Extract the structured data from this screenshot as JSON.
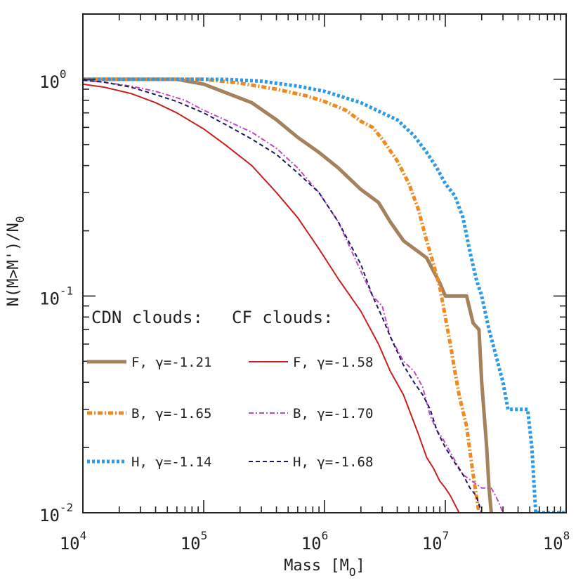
{
  "chart_data": {
    "type": "line",
    "xscale": "log",
    "yscale": "log",
    "xlim": [
      10000,
      100000000
    ],
    "ylim": [
      0.01,
      2.0
    ],
    "grid": false,
    "xlabel": "Mass [M",
    "xlabel_sub": "O",
    "xlabel_close": "]",
    "ylabel": "N(M>M')/N",
    "ylabel_sub": "0",
    "x_ticks": [
      {
        "base": "10",
        "exp": "4"
      },
      {
        "base": "10",
        "exp": "5"
      },
      {
        "base": "10",
        "exp": "6"
      },
      {
        "base": "10",
        "exp": "7"
      },
      {
        "base": "10",
        "exp": "8"
      }
    ],
    "y_ticks": [
      {
        "base": "10",
        "exp": "-2"
      },
      {
        "base": "10",
        "exp": "-1"
      },
      {
        "base": "10",
        "exp": "0"
      }
    ],
    "legend": {
      "placement": "lower-left",
      "group_titles": [
        "CDN clouds:",
        "CF clouds:"
      ]
    },
    "series": [
      {
        "name": "F, γ=-1.21",
        "group": "CDN clouds",
        "color": "#a3825d",
        "style": "solid",
        "width": "thick",
        "points": [
          [
            10000,
            1.0
          ],
          [
            30000,
            1.0
          ],
          [
            60000,
            1.0
          ],
          [
            100000,
            0.95
          ],
          [
            150000,
            0.87
          ],
          [
            250000,
            0.78
          ],
          [
            400000,
            0.65
          ],
          [
            600000,
            0.54
          ],
          [
            900000,
            0.46
          ],
          [
            1300000,
            0.39
          ],
          [
            2000000,
            0.31
          ],
          [
            2800000,
            0.27
          ],
          [
            3500000,
            0.22
          ],
          [
            4500000,
            0.18
          ],
          [
            6000000,
            0.16
          ],
          [
            7000000,
            0.15
          ],
          [
            8000000,
            0.13
          ],
          [
            9000000,
            0.115
          ],
          [
            10000000,
            0.1
          ],
          [
            15000000,
            0.1
          ],
          [
            17000000,
            0.075
          ],
          [
            19000000,
            0.07
          ],
          [
            20000000,
            0.04
          ],
          [
            22000000,
            0.02
          ],
          [
            23000000,
            0.013
          ],
          [
            24000000,
            0.01
          ]
        ]
      },
      {
        "name": "B, γ=-1.65",
        "group": "CDN clouds",
        "color": "#f08a20",
        "style": "dashdot",
        "width": "thick",
        "points": [
          [
            10000,
            1.0
          ],
          [
            100000,
            1.0
          ],
          [
            200000,
            0.96
          ],
          [
            400000,
            0.9
          ],
          [
            700000,
            0.84
          ],
          [
            1000000,
            0.79
          ],
          [
            1500000,
            0.72
          ],
          [
            2000000,
            0.64
          ],
          [
            2500000,
            0.6
          ],
          [
            3000000,
            0.53
          ],
          [
            4000000,
            0.42
          ],
          [
            5000000,
            0.33
          ],
          [
            6000000,
            0.25
          ],
          [
            7000000,
            0.18
          ],
          [
            8000000,
            0.14
          ],
          [
            9000000,
            0.11
          ],
          [
            10000000,
            0.08
          ],
          [
            11000000,
            0.06
          ],
          [
            12000000,
            0.045
          ],
          [
            13000000,
            0.035
          ],
          [
            15000000,
            0.025
          ],
          [
            17000000,
            0.015
          ],
          [
            19000000,
            0.01
          ]
        ]
      },
      {
        "name": "H, γ=-1.14",
        "group": "CDN clouds",
        "color": "#2d9ae8",
        "style": "dotted",
        "width": "thick",
        "points": [
          [
            10000,
            1.0
          ],
          [
            150000,
            1.0
          ],
          [
            300000,
            0.98
          ],
          [
            600000,
            0.93
          ],
          [
            1000000,
            0.88
          ],
          [
            2000000,
            0.78
          ],
          [
            3000000,
            0.7
          ],
          [
            4000000,
            0.65
          ],
          [
            5500000,
            0.55
          ],
          [
            7000000,
            0.46
          ],
          [
            8500000,
            0.39
          ],
          [
            10000000,
            0.33
          ],
          [
            12000000,
            0.29
          ],
          [
            14000000,
            0.23
          ],
          [
            16000000,
            0.16
          ],
          [
            18000000,
            0.12
          ],
          [
            20000000,
            0.1
          ],
          [
            23000000,
            0.07
          ],
          [
            27000000,
            0.05
          ],
          [
            30000000,
            0.04
          ],
          [
            33000000,
            0.03
          ],
          [
            48000000,
            0.03
          ],
          [
            52000000,
            0.02
          ],
          [
            56000000,
            0.01
          ],
          [
            100000000,
            0.01
          ]
        ]
      },
      {
        "name": "F, γ=-1.58",
        "group": "CF clouds",
        "color": "#c82020",
        "style": "solid",
        "width": "thin",
        "points": [
          [
            10000,
            0.95
          ],
          [
            15000,
            0.92
          ],
          [
            25000,
            0.86
          ],
          [
            40000,
            0.78
          ],
          [
            60000,
            0.7
          ],
          [
            100000,
            0.59
          ],
          [
            150000,
            0.5
          ],
          [
            250000,
            0.4
          ],
          [
            400000,
            0.3
          ],
          [
            600000,
            0.23
          ],
          [
            900000,
            0.165
          ],
          [
            1300000,
            0.12
          ],
          [
            2000000,
            0.085
          ],
          [
            2800000,
            0.06
          ],
          [
            3500000,
            0.045
          ],
          [
            4500000,
            0.035
          ],
          [
            6000000,
            0.023
          ],
          [
            7000000,
            0.018
          ],
          [
            8000000,
            0.016
          ],
          [
            9000000,
            0.014
          ],
          [
            10000000,
            0.013
          ],
          [
            11000000,
            0.012
          ],
          [
            13000000,
            0.01
          ]
        ]
      },
      {
        "name": "B, γ=-1.70",
        "group": "CF clouds",
        "color": "#c048c0",
        "style": "dashdot",
        "width": "thin",
        "points": [
          [
            10000,
            0.99
          ],
          [
            15000,
            0.97
          ],
          [
            25000,
            0.93
          ],
          [
            40000,
            0.88
          ],
          [
            70000,
            0.8
          ],
          [
            100000,
            0.72
          ],
          [
            150000,
            0.65
          ],
          [
            250000,
            0.57
          ],
          [
            400000,
            0.48
          ],
          [
            600000,
            0.39
          ],
          [
            900000,
            0.3
          ],
          [
            1300000,
            0.22
          ],
          [
            2000000,
            0.13
          ],
          [
            2500000,
            0.1
          ],
          [
            3000000,
            0.09
          ],
          [
            3500000,
            0.065
          ],
          [
            4500000,
            0.05
          ],
          [
            5500000,
            0.045
          ],
          [
            6500000,
            0.038
          ],
          [
            7500000,
            0.028
          ],
          [
            8500000,
            0.024
          ],
          [
            9500000,
            0.022
          ],
          [
            11000000,
            0.019
          ],
          [
            14000000,
            0.015
          ],
          [
            20000000,
            0.013
          ],
          [
            24000000,
            0.013
          ],
          [
            26000000,
            0.012
          ],
          [
            28000000,
            0.011
          ],
          [
            30000000,
            0.01
          ]
        ]
      },
      {
        "name": "H, γ=-1.68",
        "group": "CF clouds",
        "color": "#1a1a60",
        "style": "dashed",
        "width": "thin",
        "points": [
          [
            10000,
            0.99
          ],
          [
            15000,
            0.97
          ],
          [
            25000,
            0.92
          ],
          [
            40000,
            0.85
          ],
          [
            60000,
            0.79
          ],
          [
            100000,
            0.7
          ],
          [
            150000,
            0.62
          ],
          [
            250000,
            0.53
          ],
          [
            400000,
            0.45
          ],
          [
            600000,
            0.37
          ],
          [
            900000,
            0.3
          ],
          [
            1300000,
            0.22
          ],
          [
            2000000,
            0.14
          ],
          [
            2500000,
            0.1
          ],
          [
            3000000,
            0.08
          ],
          [
            3500000,
            0.065
          ],
          [
            4500000,
            0.048
          ],
          [
            5500000,
            0.04
          ],
          [
            6500000,
            0.035
          ],
          [
            7500000,
            0.03
          ],
          [
            8500000,
            0.024
          ],
          [
            10000000,
            0.02
          ],
          [
            12000000,
            0.017
          ],
          [
            14000000,
            0.015
          ],
          [
            16000000,
            0.013
          ],
          [
            18000000,
            0.012
          ],
          [
            20000000,
            0.01
          ]
        ]
      }
    ]
  }
}
